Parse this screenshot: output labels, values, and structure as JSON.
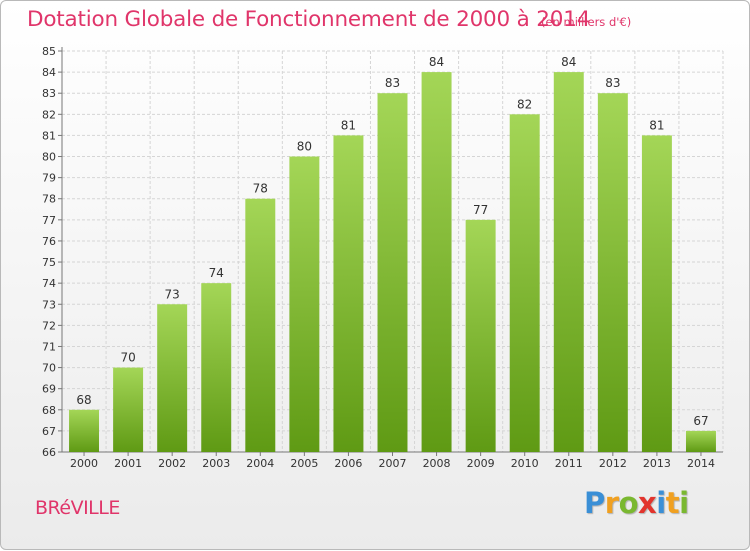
{
  "page": {
    "title": "Dotation Globale de Fonctionnement de 2000 à 2014",
    "subtitle": "(en milliers d'€)",
    "town": "BRéVILLE",
    "logo": {
      "text": "Proxiti",
      "letters": [
        {
          "char": "P",
          "color": "#3a8fd6"
        },
        {
          "char": "r",
          "color": "#f0a020"
        },
        {
          "char": "o",
          "color": "#7ab830"
        },
        {
          "char": "x",
          "color": "#e2342d"
        },
        {
          "char": "i",
          "color": "#3a8fd6"
        },
        {
          "char": "t",
          "color": "#f0a020"
        },
        {
          "char": "i",
          "color": "#7ab830"
        }
      ]
    }
  },
  "colors": {
    "title": "#e0356a",
    "bar_top": "#a4d657",
    "bar_bottom": "#5f9a14",
    "grid": "#d5d5d5",
    "axis_text": "#333333"
  },
  "chart_data": {
    "type": "bar",
    "title": "Dotation Globale de Fonctionnement de 2000 à 2014",
    "subtitle": "(en milliers d'€)",
    "xlabel": "",
    "ylabel": "",
    "categories": [
      "2000",
      "2001",
      "2002",
      "2003",
      "2004",
      "2005",
      "2006",
      "2007",
      "2008",
      "2009",
      "2010",
      "2011",
      "2012",
      "2013",
      "2014"
    ],
    "values": [
      68,
      70,
      73,
      74,
      78,
      80,
      81,
      83,
      84,
      77,
      82,
      84,
      83,
      81,
      67
    ],
    "ylim": [
      66,
      85
    ],
    "yticks": [
      66,
      67,
      68,
      69,
      70,
      71,
      72,
      73,
      74,
      75,
      76,
      77,
      78,
      79,
      80,
      81,
      82,
      83,
      84,
      85
    ],
    "grid": true,
    "data_labels": true,
    "legend": "none"
  }
}
